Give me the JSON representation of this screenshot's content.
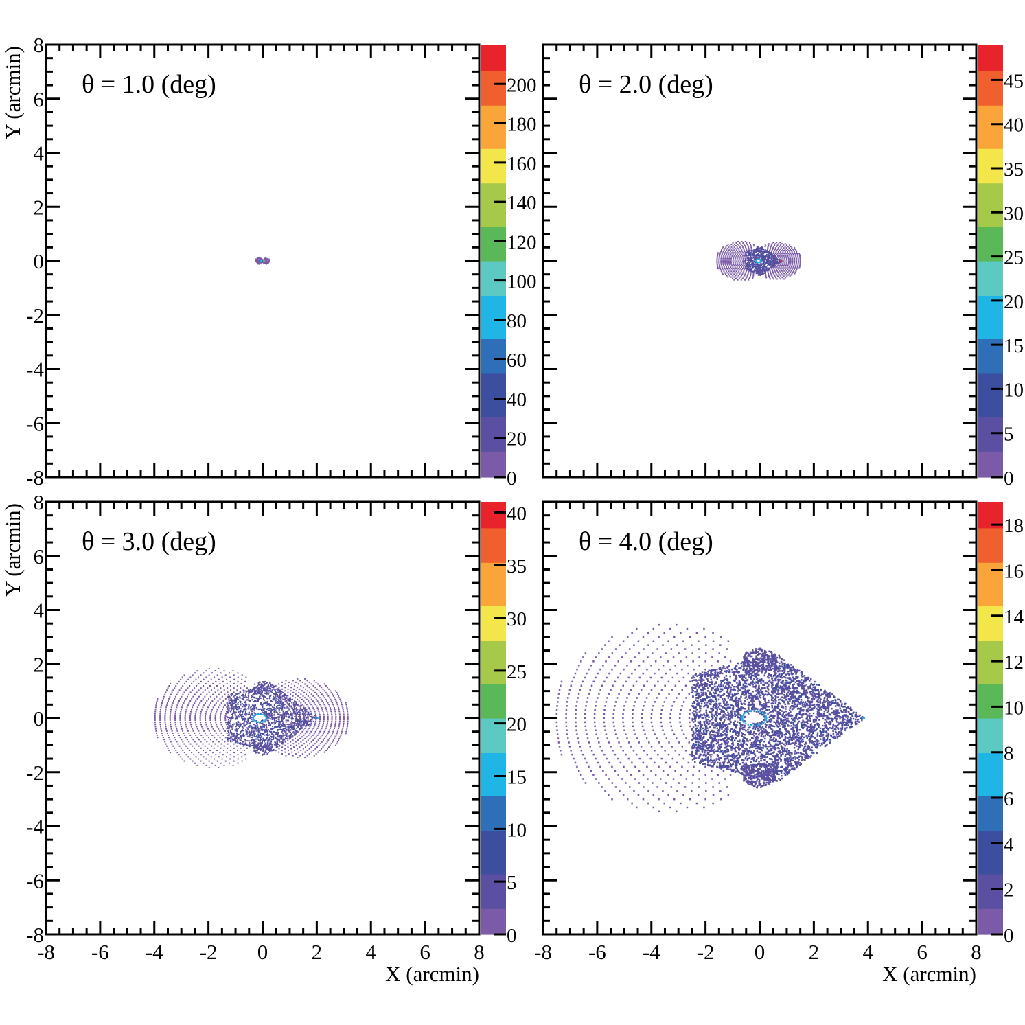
{
  "chart_data": [
    {
      "type": "heatmap",
      "title": "θ = 1.0 (deg)",
      "xlabel": "",
      "ylabel": "Y (arcmin)",
      "xlim": [
        -8,
        8
      ],
      "ylim": [
        -8,
        8
      ],
      "xticks": [
        "-8",
        "-6",
        "-4",
        "-2",
        "0",
        "2",
        "4",
        "6",
        "8"
      ],
      "yticks": [
        "-8",
        "-6",
        "-4",
        "-2",
        "0",
        "2",
        "4",
        "6",
        "8"
      ],
      "show_xtick_labels": false,
      "show_ytick_labels": true,
      "zlim": [
        0,
        220
      ],
      "zticks": [
        "0",
        "20",
        "40",
        "60",
        "80",
        "100",
        "120",
        "140",
        "160",
        "180",
        "200"
      ],
      "ztick_values": [
        0,
        20,
        40,
        60,
        80,
        100,
        120,
        140,
        160,
        180,
        200
      ]
    },
    {
      "type": "heatmap",
      "title": "θ = 2.0 (deg)",
      "xlabel": "",
      "ylabel": "",
      "xlim": [
        -8,
        8
      ],
      "ylim": [
        -8,
        8
      ],
      "xticks": [
        "-8",
        "-6",
        "-4",
        "-2",
        "0",
        "2",
        "4",
        "6",
        "8"
      ],
      "yticks": [
        "-8",
        "-6",
        "-4",
        "-2",
        "0",
        "2",
        "4",
        "6",
        "8"
      ],
      "show_xtick_labels": false,
      "show_ytick_labels": false,
      "zlim": [
        0,
        49
      ],
      "zticks": [
        "0",
        "5",
        "10",
        "15",
        "20",
        "25",
        "30",
        "35",
        "40",
        "45"
      ],
      "ztick_values": [
        0,
        5,
        10,
        15,
        20,
        25,
        30,
        35,
        40,
        45
      ]
    },
    {
      "type": "heatmap",
      "title": "θ = 3.0 (deg)",
      "xlabel": "",
      "ylabel": "Y (arcmin)",
      "xlim": [
        -8,
        8
      ],
      "ylim": [
        -8,
        8
      ],
      "xticks": [
        "-8",
        "-6",
        "-4",
        "-2",
        "0",
        "2",
        "4",
        "6",
        "8"
      ],
      "yticks": [
        "-8",
        "-6",
        "-4",
        "-2",
        "0",
        "2",
        "4",
        "6",
        "8"
      ],
      "show_xtick_labels": true,
      "show_ytick_labels": true,
      "zlim": [
        0,
        41
      ],
      "zticks": [
        "0",
        "5",
        "10",
        "15",
        "20",
        "25",
        "30",
        "35",
        "40"
      ],
      "ztick_values": [
        0,
        5,
        10,
        15,
        20,
        25,
        30,
        35,
        40
      ]
    },
    {
      "type": "heatmap",
      "title": "θ = 4.0 (deg)",
      "xlabel": "X (arcmin)",
      "ylabel": "",
      "xlim": [
        -8,
        8
      ],
      "ylim": [
        -8,
        8
      ],
      "xticks": [
        "-8",
        "-6",
        "-4",
        "-2",
        "0",
        "2",
        "4",
        "6",
        "8"
      ],
      "yticks": [
        "-8",
        "-6",
        "-4",
        "-2",
        "0",
        "2",
        "4",
        "6",
        "8"
      ],
      "show_xtick_labels": true,
      "show_ytick_labels": false,
      "zlim": [
        0,
        19
      ],
      "zticks": [
        "0",
        "2",
        "4",
        "6",
        "8",
        "10",
        "12",
        "14",
        "16",
        "18"
      ],
      "ztick_values": [
        0,
        2,
        4,
        6,
        8,
        10,
        12,
        14,
        16,
        18
      ]
    }
  ],
  "xlabel_bottom_left": "X (arcmin)",
  "palette": [
    "#7b5ba8",
    "#5a4fa0",
    "#3b4f9e",
    "#2f6fb8",
    "#1fb6e6",
    "#5cc9c2",
    "#5bb858",
    "#a7c94a",
    "#f2e64a",
    "#f9a53a",
    "#f0602e",
    "#e8232c"
  ]
}
